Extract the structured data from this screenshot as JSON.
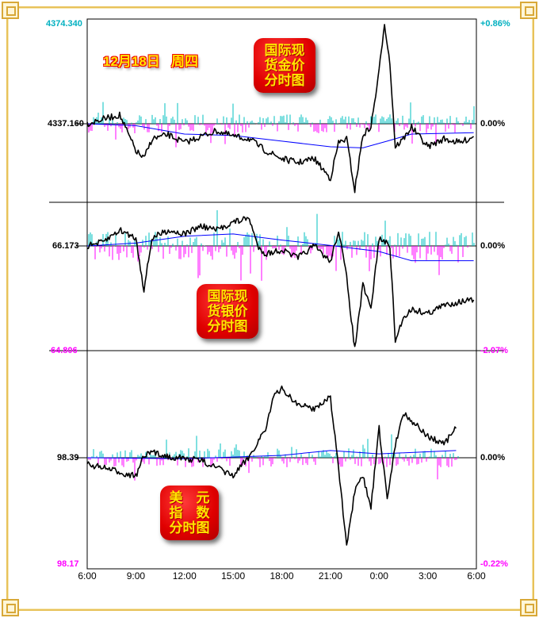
{
  "header": {
    "date": "12月18日",
    "weekday": "周四"
  },
  "colors": {
    "price": "#000000",
    "avg": "#0000ff",
    "up_bar": "#00c0c0",
    "down_bar": "#ff00ff",
    "frame": "#e8c25a",
    "badge": "#e00000",
    "badge_text": "#ffe600"
  },
  "chart_data": [
    {
      "type": "line",
      "title": "国际现货金价分时图",
      "title_lines": [
        "国际现",
        "货金价",
        "分时图"
      ],
      "y_top_label": "4374.340",
      "y_mid_label": "4337.160",
      "pct_top_label": "+0.86%",
      "pct_mid_label": "0.00%",
      "base": 4337.16,
      "ylim": [
        4309.3,
        4374.34
      ],
      "xlim": [
        "6:00",
        "6:00"
      ],
      "x": [
        "6:00",
        "7:00",
        "8:00",
        "9:00",
        "9:30",
        "10:00",
        "11:00",
        "12:00",
        "13:00",
        "14:00",
        "15:00",
        "16:00",
        "17:00",
        "18:00",
        "19:00",
        "20:00",
        "21:00",
        "21:30",
        "22:00",
        "22:30",
        "23:00",
        "23:30",
        "0:00",
        "0:20",
        "0:40",
        "1:00",
        "1:30",
        "2:00",
        "3:00",
        "4:00",
        "5:00",
        "5:50"
      ],
      "values": [
        4337.16,
        4338.85,
        4340.26,
        4327.58,
        4324.77,
        4331.81,
        4333.22,
        4330.4,
        4332.65,
        4334.63,
        4332.65,
        4331.81,
        4327.58,
        4324.77,
        4323.36,
        4324.77,
        4317.72,
        4330.4,
        4331.81,
        4313.5,
        4333.22,
        4336.03,
        4355.75,
        4373.13,
        4358.57,
        4328.99,
        4331.81,
        4336.03,
        4328.99,
        4331.81,
        4330.4,
        4332.65
      ],
      "avg_x": [
        "6:00",
        "9:00",
        "12:00",
        "15:00",
        "18:00",
        "21:00",
        "23:00",
        "0:30",
        "2:00",
        "5:50"
      ],
      "avg_values": [
        4337.16,
        4336.5,
        4333.5,
        4333.0,
        4331.0,
        4329.0,
        4328.6,
        4331.0,
        4333.5,
        4334.0
      ]
    },
    {
      "type": "line",
      "title": "国际现货银价分时图",
      "title_lines": [
        "国际现",
        "货银价",
        "分时图"
      ],
      "y_mid_label": "66.173",
      "y_bottom_label": "64.806",
      "pct_mid_label": "0.00%",
      "pct_bottom_label": "-2.07%",
      "base": 66.173,
      "ylim": [
        64.806,
        66.743
      ],
      "xlim": [
        "6:00",
        "6:00"
      ],
      "x": [
        "6:00",
        "7:00",
        "8:00",
        "9:00",
        "9:30",
        "10:00",
        "11:00",
        "12:00",
        "13:00",
        "14:00",
        "15:00",
        "16:00",
        "16:30",
        "17:00",
        "18:00",
        "19:00",
        "20:00",
        "21:00",
        "21:30",
        "22:00",
        "22:30",
        "23:00",
        "23:30",
        "0:00",
        "0:40",
        "1:00",
        "1:30",
        "2:00",
        "3:00",
        "4:00",
        "5:00",
        "5:50"
      ],
      "values": [
        66.173,
        66.225,
        66.38,
        66.277,
        65.603,
        66.277,
        66.38,
        66.328,
        66.432,
        66.38,
        66.484,
        66.535,
        66.173,
        66.069,
        66.121,
        66.018,
        66.173,
        65.966,
        66.38,
        65.759,
        64.827,
        65.655,
        65.345,
        66.277,
        66.173,
        64.93,
        65.241,
        65.345,
        65.293,
        65.396,
        65.448,
        65.469
      ],
      "avg_x": [
        "6:00",
        "9:00",
        "12:00",
        "15:00",
        "18:00",
        "21:00",
        "0:00",
        "2:00",
        "5:50"
      ],
      "avg_values": [
        66.173,
        66.21,
        66.3,
        66.33,
        66.25,
        66.18,
        66.1,
        65.98,
        65.98
      ]
    },
    {
      "type": "line",
      "title": "美元指数分时图",
      "title_lines": [
        "美　元",
        "指　数",
        "分时图"
      ],
      "y_mid_label": "98.39",
      "y_bottom_label": "98.17",
      "pct_mid_label": "0.00%",
      "pct_bottom_label": "-0.22%",
      "base": 98.39,
      "ylim": [
        98.17,
        98.612
      ],
      "xlim": [
        "6:00",
        "6:00"
      ],
      "x": [
        "6:00",
        "7:00",
        "8:00",
        "9:00",
        "9:30",
        "10:00",
        "11:00",
        "12:00",
        "13:00",
        "14:00",
        "15:00",
        "16:00",
        "17:00",
        "17:30",
        "18:00",
        "19:00",
        "20:00",
        "21:00",
        "21:30",
        "22:00",
        "22:30",
        "23:00",
        "23:30",
        "0:00",
        "0:30",
        "1:00",
        "1:30",
        "2:00",
        "3:00",
        "4:00",
        "4:45"
      ],
      "values": [
        98.377,
        98.369,
        98.36,
        98.352,
        98.393,
        98.401,
        98.393,
        98.388,
        98.385,
        98.369,
        98.352,
        98.393,
        98.451,
        98.516,
        98.533,
        98.5,
        98.492,
        98.516,
        98.369,
        98.204,
        98.319,
        98.352,
        98.287,
        98.451,
        98.303,
        98.418,
        98.484,
        98.467,
        98.434,
        98.418,
        98.451
      ],
      "avg_x": [
        "6:00",
        "12:00",
        "18:00",
        "21:00",
        "0:00",
        "4:45"
      ],
      "avg_values": [
        98.39,
        98.388,
        98.395,
        98.405,
        98.398,
        98.405
      ]
    }
  ],
  "x_ticks": [
    "6:00",
    "9:00",
    "12:00",
    "15:00",
    "18:00",
    "21:00",
    "0:00",
    "3:00",
    "6:00"
  ]
}
